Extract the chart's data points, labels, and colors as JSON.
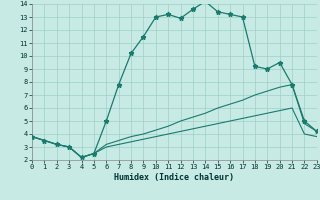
{
  "xlabel": "Humidex (Indice chaleur)",
  "background_color": "#c8eae4",
  "grid_color": "#9ecfc7",
  "line_color": "#1a7a6e",
  "xlim": [
    0,
    23
  ],
  "ylim": [
    2,
    14
  ],
  "xticks": [
    0,
    1,
    2,
    3,
    4,
    5,
    6,
    7,
    8,
    9,
    10,
    11,
    12,
    13,
    14,
    15,
    16,
    17,
    18,
    19,
    20,
    21,
    22,
    23
  ],
  "yticks": [
    2,
    3,
    4,
    5,
    6,
    7,
    8,
    9,
    10,
    11,
    12,
    13,
    14
  ],
  "line1_x": [
    0,
    1,
    2,
    3,
    4,
    5,
    6,
    7,
    8,
    9,
    10,
    11,
    12,
    13,
    14,
    15,
    16,
    17,
    18,
    19,
    20,
    21,
    22,
    23
  ],
  "line1_y": [
    3.8,
    3.5,
    3.2,
    3.0,
    2.2,
    2.5,
    5.0,
    7.8,
    10.2,
    11.5,
    13.0,
    13.2,
    12.9,
    13.6,
    14.2,
    13.4,
    13.2,
    13.0,
    9.2,
    9.0,
    9.5,
    7.8,
    5.0,
    4.2
  ],
  "line2_x": [
    0,
    1,
    2,
    3,
    4,
    5,
    6,
    7,
    8,
    9,
    10,
    11,
    12,
    13,
    14,
    15,
    16,
    17,
    18,
    19,
    20,
    21,
    22,
    23
  ],
  "line2_y": [
    3.8,
    3.5,
    3.2,
    3.0,
    2.2,
    2.5,
    3.2,
    3.5,
    3.8,
    4.0,
    4.3,
    4.6,
    5.0,
    5.3,
    5.6,
    6.0,
    6.3,
    6.6,
    7.0,
    7.3,
    7.6,
    7.8,
    4.8,
    4.2
  ],
  "line3_x": [
    0,
    1,
    2,
    3,
    4,
    5,
    6,
    7,
    8,
    9,
    10,
    11,
    12,
    13,
    14,
    15,
    16,
    17,
    18,
    19,
    20,
    21,
    22,
    23
  ],
  "line3_y": [
    3.8,
    3.5,
    3.2,
    3.0,
    2.2,
    2.5,
    3.0,
    3.2,
    3.4,
    3.6,
    3.8,
    4.0,
    4.2,
    4.4,
    4.6,
    4.8,
    5.0,
    5.2,
    5.4,
    5.6,
    5.8,
    6.0,
    4.0,
    3.8
  ],
  "xlabel_fontsize": 6,
  "tick_fontsize": 5
}
